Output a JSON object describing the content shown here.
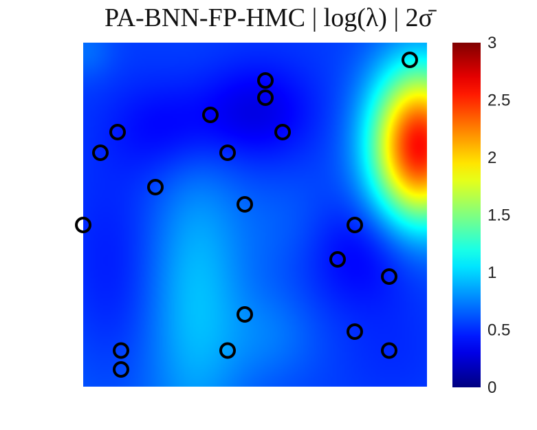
{
  "chart_data": {
    "type": "heatmap",
    "title": "PA-BNN-FP-HMC |  log(λ) | 2σ̄",
    "colormap": "jet",
    "colorbar": {
      "range": [
        0,
        3
      ],
      "ticks": [
        "0",
        "0.5",
        "1",
        "1.5",
        "2",
        "2.5",
        "3"
      ],
      "tick_values": [
        0,
        0.5,
        1,
        1.5,
        2,
        2.5,
        3
      ]
    },
    "x_range": [
      0,
      1
    ],
    "y_range": [
      0,
      1
    ],
    "blobs": [
      {
        "x": 0.0,
        "y": 0.0,
        "v": 0.65,
        "sx": 0.3,
        "sy": 0.3
      },
      {
        "x": 0.25,
        "y": 0.75,
        "v": 0.35,
        "sx": 0.12,
        "sy": 0.1
      },
      {
        "x": 0.5,
        "y": 0.8,
        "v": 0.3,
        "sx": 0.12,
        "sy": 0.1
      },
      {
        "x": 0.8,
        "y": 0.4,
        "v": 0.3,
        "sx": 0.14,
        "sy": 0.12
      },
      {
        "x": 0.9,
        "y": 0.1,
        "v": 0.5,
        "sx": 0.1,
        "sy": 0.1
      },
      {
        "x": 0.08,
        "y": 0.3,
        "v": 0.4,
        "sx": 0.1,
        "sy": 0.22
      },
      {
        "x": 0.33,
        "y": 0.27,
        "v": 0.9,
        "sx": 0.1,
        "sy": 0.3
      },
      {
        "x": 0.62,
        "y": 0.45,
        "v": 0.7,
        "sx": 0.12,
        "sy": 0.12
      },
      {
        "x": 0.22,
        "y": 0.85,
        "v": 0.55,
        "sx": 0.06,
        "sy": 0.05
      },
      {
        "x": 0.0,
        "y": 0.98,
        "v": 0.7,
        "sx": 0.06,
        "sy": 0.06
      },
      {
        "x": 0.98,
        "y": 0.7,
        "v": 2.6,
        "sx": 0.1,
        "sy": 0.16
      },
      {
        "x": 0.55,
        "y": 0.15,
        "v": 0.7,
        "sx": 0.1,
        "sy": 0.1
      }
    ],
    "points": [
      {
        "x": 0.95,
        "y": 0.95
      },
      {
        "x": 0.53,
        "y": 0.89
      },
      {
        "x": 0.53,
        "y": 0.84
      },
      {
        "x": 0.37,
        "y": 0.79
      },
      {
        "x": 0.1,
        "y": 0.74
      },
      {
        "x": 0.58,
        "y": 0.74
      },
      {
        "x": 0.05,
        "y": 0.68
      },
      {
        "x": 0.42,
        "y": 0.68
      },
      {
        "x": 0.21,
        "y": 0.58
      },
      {
        "x": 0.47,
        "y": 0.53
      },
      {
        "x": 0.0,
        "y": 0.47
      },
      {
        "x": 0.79,
        "y": 0.47
      },
      {
        "x": 0.74,
        "y": 0.37
      },
      {
        "x": 0.89,
        "y": 0.32
      },
      {
        "x": 0.47,
        "y": 0.21
      },
      {
        "x": 0.79,
        "y": 0.16
      },
      {
        "x": 0.11,
        "y": 0.105
      },
      {
        "x": 0.42,
        "y": 0.105
      },
      {
        "x": 0.89,
        "y": 0.105
      },
      {
        "x": 0.11,
        "y": 0.05
      }
    ]
  }
}
